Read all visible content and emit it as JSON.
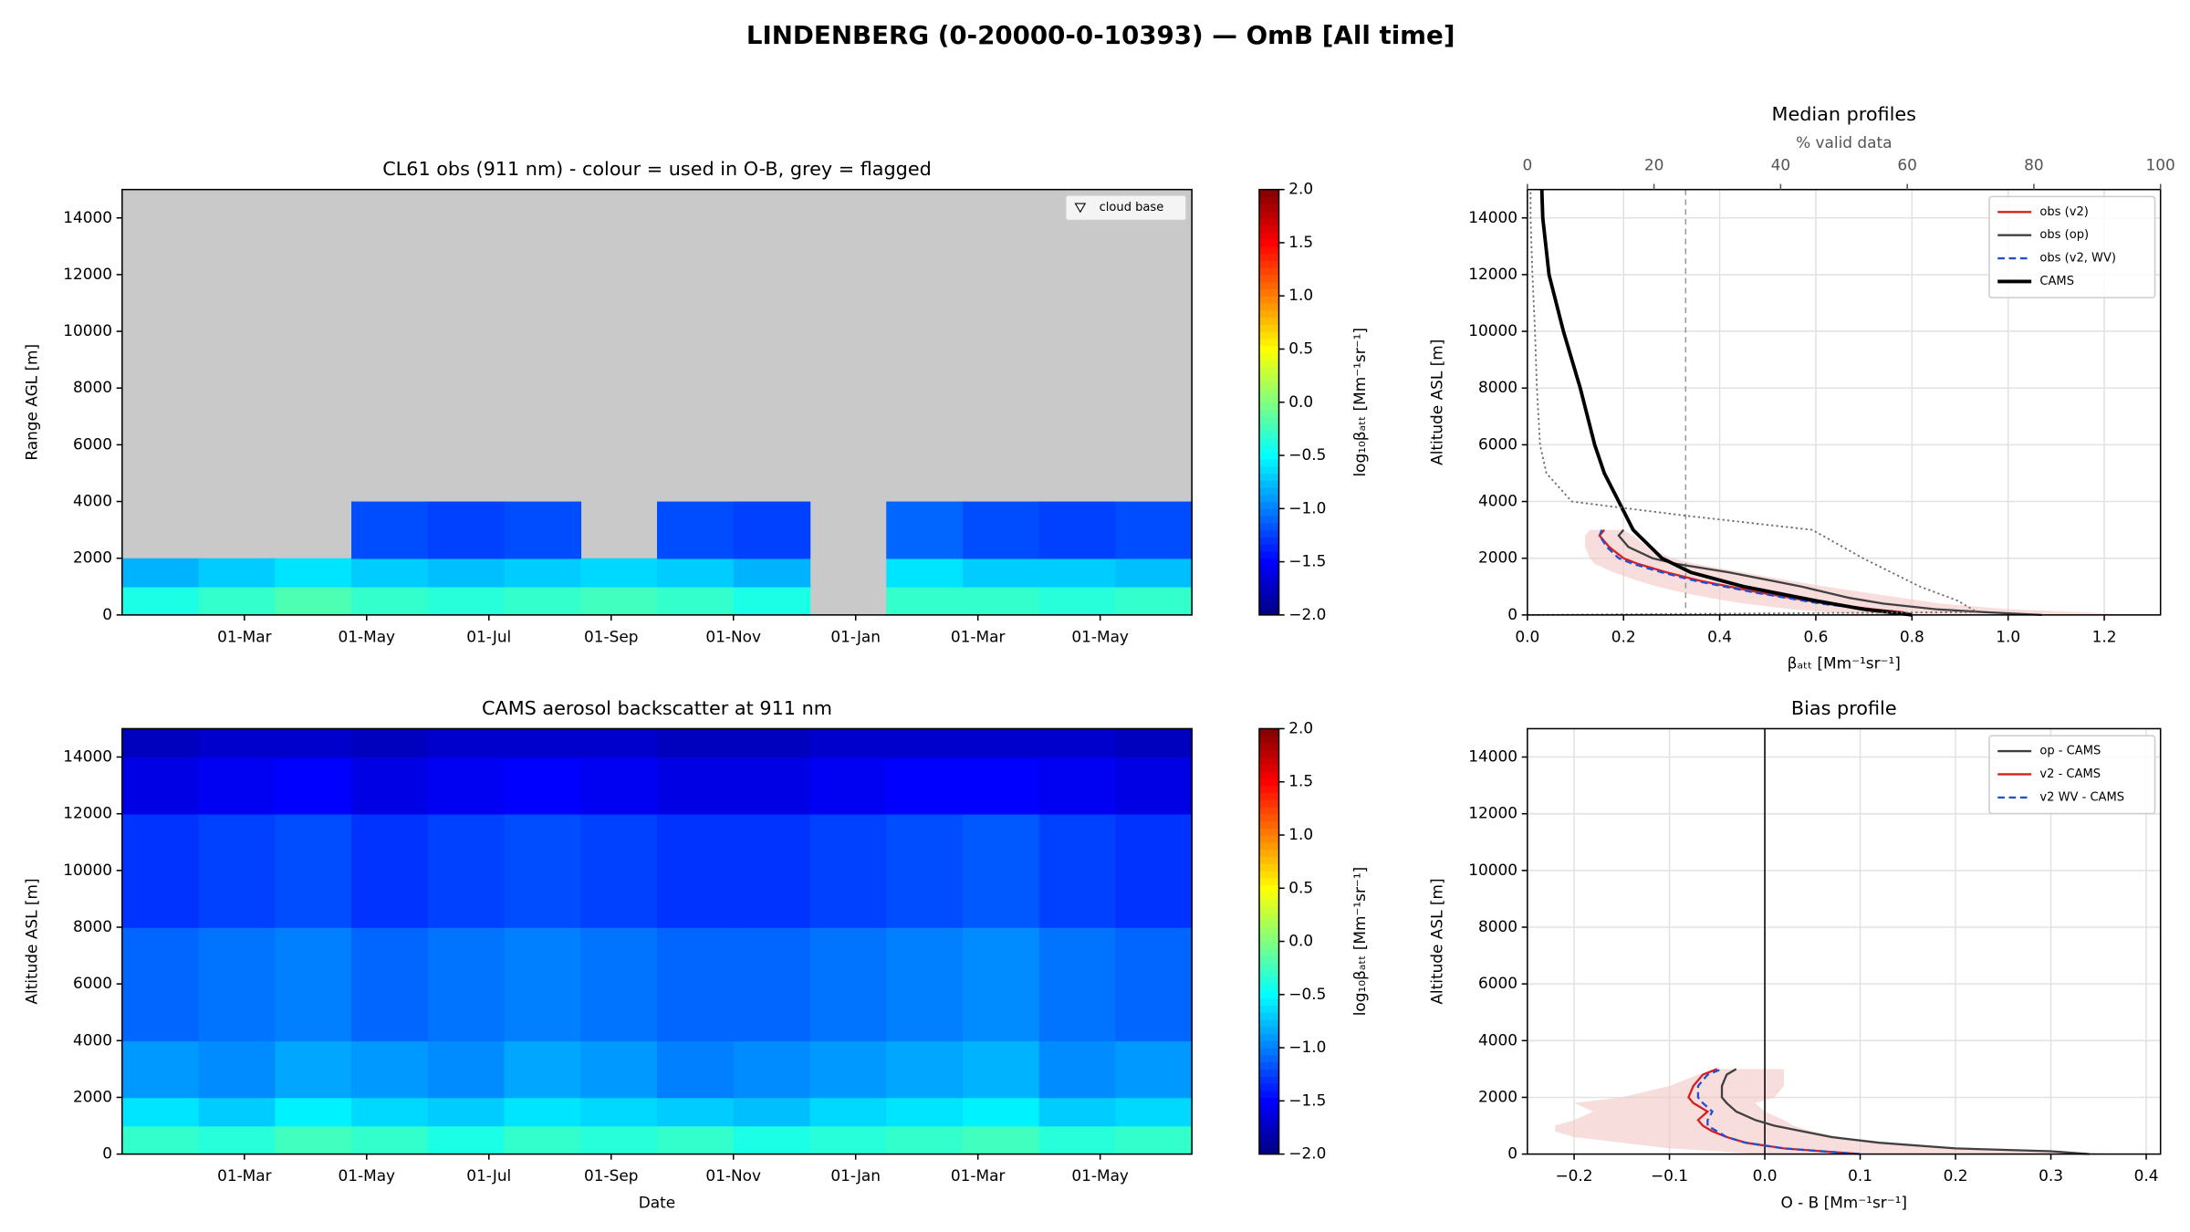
{
  "title": "LINDENBERG (0-20000-0-10393) — OmB [All time]",
  "chart_data": [
    {
      "type": "heatmap",
      "title": "CL61 obs (911 nm) - colour = used in O-B, grey = flagged",
      "ylabel": "Range AGL [m]",
      "xtick_labels": [
        "01-Mar",
        "01-May",
        "01-Jul",
        "01-Sep",
        "01-Nov",
        "01-Jan",
        "01-Mar",
        "01-May"
      ],
      "ylim": [
        0,
        15000
      ],
      "yticks": [
        0,
        2000,
        4000,
        6000,
        8000,
        10000,
        12000,
        14000
      ],
      "y_edges": [
        0,
        1000,
        2000,
        4000
      ],
      "z": [
        [
          -0.4,
          -0.3,
          -0.2,
          -0.3,
          -0.35,
          -0.3,
          -0.25,
          -0.3,
          -0.4,
          null,
          -0.3,
          -0.3,
          -0.35,
          -0.3
        ],
        [
          -0.8,
          -0.7,
          -0.6,
          -0.7,
          -0.75,
          -0.7,
          -0.65,
          -0.7,
          -0.8,
          null,
          -0.6,
          -0.7,
          -0.7,
          -0.75
        ],
        [
          null,
          null,
          null,
          -1.2,
          -1.25,
          -1.2,
          null,
          -1.2,
          -1.25,
          null,
          -1.1,
          -1.2,
          -1.25,
          -1.2
        ]
      ],
      "marker_legend": "cloud base",
      "clim": [
        -2,
        2
      ],
      "colorbar_label": "log₁₀βₐₜₜ [Mm⁻¹sr⁻¹]",
      "cticks": [
        {
          "value": -2,
          "label": "−2.0"
        },
        {
          "value": -1.5,
          "label": "−1.5"
        },
        {
          "value": -1,
          "label": "−1.0"
        },
        {
          "value": -0.5,
          "label": "−0.5"
        },
        {
          "value": 0,
          "label": "0.0"
        },
        {
          "value": 0.5,
          "label": "0.5"
        },
        {
          "value": 1,
          "label": "1.0"
        },
        {
          "value": 1.5,
          "label": "1.5"
        },
        {
          "value": 2,
          "label": "2.0"
        }
      ]
    },
    {
      "type": "heatmap",
      "title": "CAMS aerosol backscatter at 911 nm",
      "ylabel": "Altitude ASL [m]",
      "xlabel": "Date",
      "xtick_labels": [
        "01-Mar",
        "01-May",
        "01-Jul",
        "01-Sep",
        "01-Nov",
        "01-Jan",
        "01-Mar",
        "01-May"
      ],
      "ylim": [
        0,
        15000
      ],
      "yticks": [
        0,
        2000,
        4000,
        6000,
        8000,
        10000,
        12000,
        14000
      ],
      "y_edges": [
        0,
        1000,
        2000,
        4000,
        8000,
        12000,
        14000,
        15000
      ],
      "z": [
        [
          -0.3,
          -0.35,
          -0.25,
          -0.3,
          -0.4,
          -0.3,
          -0.35,
          -0.3,
          -0.4,
          -0.35,
          -0.3,
          -0.25,
          -0.35,
          -0.3
        ],
        [
          -0.6,
          -0.7,
          -0.55,
          -0.65,
          -0.7,
          -0.6,
          -0.65,
          -0.7,
          -0.75,
          -0.65,
          -0.6,
          -0.55,
          -0.7,
          -0.65
        ],
        [
          -0.9,
          -0.95,
          -0.85,
          -0.9,
          -0.95,
          -0.85,
          -0.9,
          -1.0,
          -0.95,
          -0.9,
          -0.85,
          -0.8,
          -0.95,
          -0.9
        ],
        [
          -1.1,
          -1.05,
          -1.0,
          -1.1,
          -1.05,
          -1.0,
          -1.05,
          -1.1,
          -1.1,
          -1.05,
          -1.0,
          -0.95,
          -1.05,
          -1.1
        ],
        [
          -1.3,
          -1.25,
          -1.2,
          -1.3,
          -1.25,
          -1.2,
          -1.25,
          -1.3,
          -1.3,
          -1.25,
          -1.2,
          -1.15,
          -1.25,
          -1.3
        ],
        [
          -1.6,
          -1.55,
          -1.5,
          -1.6,
          -1.55,
          -1.5,
          -1.55,
          -1.6,
          -1.6,
          -1.55,
          -1.5,
          -1.5,
          -1.55,
          -1.6
        ],
        [
          -1.75,
          -1.7,
          -1.7,
          -1.75,
          -1.7,
          -1.7,
          -1.7,
          -1.75,
          -1.75,
          -1.7,
          -1.7,
          -1.7,
          -1.7,
          -1.75
        ]
      ],
      "clim": [
        -2,
        2
      ],
      "colorbar_label": "log₁₀βₐₜₜ [Mm⁻¹sr⁻¹]",
      "cticks": [
        {
          "value": -2,
          "label": "−2.0"
        },
        {
          "value": -1.5,
          "label": "−1.5"
        },
        {
          "value": -1,
          "label": "−1.0"
        },
        {
          "value": -0.5,
          "label": "−0.5"
        },
        {
          "value": 0,
          "label": "0.0"
        },
        {
          "value": 0.5,
          "label": "0.5"
        },
        {
          "value": 1,
          "label": "1.0"
        },
        {
          "value": 1.5,
          "label": "1.5"
        },
        {
          "value": 2,
          "label": "2.0"
        }
      ]
    },
    {
      "type": "profile",
      "title": "Median profiles",
      "xlabel": "βₐₜₜ [Mm⁻¹sr⁻¹]",
      "ylabel": "Altitude ASL [m]",
      "x2label": "% valid data",
      "grid": true,
      "xlim": [
        0,
        1.317
      ],
      "xticks": [
        {
          "value": 0,
          "label": "0.0"
        },
        {
          "value": 0.2,
          "label": "0.2"
        },
        {
          "value": 0.4,
          "label": "0.4"
        },
        {
          "value": 0.6,
          "label": "0.6"
        },
        {
          "value": 0.8,
          "label": "0.8"
        },
        {
          "value": 1,
          "label": "1.0"
        },
        {
          "value": 1.2,
          "label": "1.2"
        }
      ],
      "x2lim": [
        0,
        100
      ],
      "x2ticks": [
        0,
        20,
        40,
        60,
        80,
        100
      ],
      "vline_x2": 25,
      "ylim": [
        0,
        15000
      ],
      "yticks": [
        0,
        2000,
        4000,
        6000,
        8000,
        10000,
        12000,
        14000
      ],
      "y": [
        0,
        100,
        200,
        400,
        600,
        800,
        1000,
        1200,
        1500,
        1800,
        2000,
        2400,
        2800,
        3000
      ],
      "band": {
        "color": "#f4c7c7",
        "lower": [
          0.7,
          0.62,
          0.55,
          0.45,
          0.38,
          0.32,
          0.27,
          0.23,
          0.18,
          0.14,
          0.13,
          0.12,
          0.12,
          0.13
        ],
        "upper": [
          1.27,
          1.15,
          1.0,
          0.86,
          0.78,
          0.7,
          0.62,
          0.55,
          0.45,
          0.35,
          0.3,
          0.25,
          0.22,
          0.2
        ]
      },
      "series": [
        {
          "name": "obs (v2)",
          "color": "#d62020",
          "width": 1.5,
          "values": [
            0.8,
            0.78,
            0.72,
            0.62,
            0.55,
            0.48,
            0.42,
            0.36,
            0.29,
            0.23,
            0.2,
            0.17,
            0.15,
            0.16
          ]
        },
        {
          "name": "obs (op)",
          "color": "#404040",
          "width": 1.5,
          "values": [
            1.07,
            0.95,
            0.85,
            0.74,
            0.67,
            0.62,
            0.57,
            0.51,
            0.42,
            0.31,
            0.26,
            0.21,
            0.19,
            0.2
          ]
        },
        {
          "name": "obs (v2, WV)",
          "color": "#2050d0",
          "width": 1.5,
          "dash": true,
          "values": [
            0.79,
            0.77,
            0.71,
            0.61,
            0.54,
            0.47,
            0.41,
            0.35,
            0.28,
            0.22,
            0.19,
            0.165,
            0.15,
            0.155
          ]
        },
        {
          "name": "CAMS",
          "color": "#000000",
          "width": 2.5,
          "y": [
            0,
            200,
            500,
            1000,
            1500,
            2000,
            3000,
            4000,
            5000,
            6000,
            8000,
            10000,
            12000,
            14000,
            15000
          ],
          "values": [
            0.8,
            0.7,
            0.6,
            0.45,
            0.34,
            0.28,
            0.22,
            0.19,
            0.16,
            0.14,
            0.11,
            0.075,
            0.045,
            0.032,
            0.03
          ]
        },
        {
          "color": "#707070",
          "width": 1.2,
          "dotted": true,
          "axis": "x2",
          "y": [
            0,
            100,
            500,
            1000,
            2000,
            2500,
            3000,
            3500,
            4000,
            5000,
            6000,
            8000,
            10000,
            12000,
            14000,
            15000
          ],
          "values": [
            0,
            71,
            68,
            62,
            53,
            49,
            45,
            25,
            7,
            3,
            2,
            1.5,
            1.2,
            0.8,
            0.5,
            0.5
          ]
        }
      ]
    },
    {
      "type": "profile",
      "title": "Bias profile",
      "xlabel": "O - B [Mm⁻¹sr⁻¹]",
      "ylabel": "Altitude ASL [m]",
      "grid": true,
      "xlim": [
        -0.249,
        0.415
      ],
      "xticks": [
        {
          "value": -0.2,
          "label": "−0.2"
        },
        {
          "value": -0.1,
          "label": "−0.1"
        },
        {
          "value": 0,
          "label": "0.0"
        },
        {
          "value": 0.1,
          "label": "0.1"
        },
        {
          "value": 0.2,
          "label": "0.2"
        },
        {
          "value": 0.3,
          "label": "0.3"
        },
        {
          "value": 0.4,
          "label": "0.4"
        }
      ],
      "vline": 0,
      "ylim": [
        0,
        15000
      ],
      "yticks": [
        0,
        2000,
        4000,
        6000,
        8000,
        10000,
        12000,
        14000
      ],
      "y": [
        0,
        100,
        200,
        400,
        600,
        800,
        1000,
        1200,
        1500,
        1800,
        2000,
        2400,
        2800,
        3000
      ],
      "band": {
        "color": "#f4c7c7",
        "lower": [
          0.0,
          -0.05,
          -0.1,
          -0.15,
          -0.2,
          -0.22,
          -0.22,
          -0.2,
          -0.18,
          -0.2,
          -0.15,
          -0.1,
          -0.07,
          -0.05
        ],
        "upper": [
          0.38,
          0.3,
          0.2,
          0.12,
          0.08,
          0.05,
          0.03,
          0.02,
          0.0,
          -0.01,
          0.01,
          0.02,
          0.02,
          0.02
        ]
      },
      "series": [
        {
          "name": "op - CAMS",
          "color": "#404040",
          "width": 1.5,
          "values": [
            0.34,
            0.3,
            0.2,
            0.12,
            0.07,
            0.04,
            0.01,
            -0.01,
            -0.03,
            -0.04,
            -0.045,
            -0.045,
            -0.04,
            -0.03
          ]
        },
        {
          "name": "v2 - CAMS",
          "color": "#d62020",
          "width": 1.5,
          "values": [
            0.1,
            0.06,
            0.02,
            -0.02,
            -0.04,
            -0.055,
            -0.065,
            -0.07,
            -0.06,
            -0.075,
            -0.08,
            -0.075,
            -0.065,
            -0.05
          ]
        },
        {
          "name": "v2 WV - CAMS",
          "color": "#2050d0",
          "width": 1.5,
          "dash": true,
          "values": [
            0.1,
            0.06,
            0.02,
            -0.02,
            -0.04,
            -0.05,
            -0.06,
            -0.06,
            -0.055,
            -0.065,
            -0.07,
            -0.07,
            -0.06,
            -0.045
          ]
        }
      ]
    }
  ]
}
